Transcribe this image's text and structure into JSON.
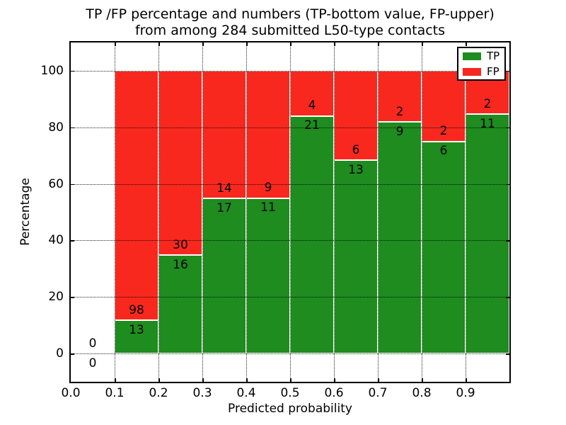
{
  "title": {
    "line1": "TP /FP percentage and numbers (TP-bottom value, FP-upper)",
    "line2": "from among 284 submitted L50-type contacts"
  },
  "axes": {
    "xlabel": "Predicted probability",
    "ylabel": "Percentage",
    "xtick_labels": [
      "0.0",
      "0.1",
      "0.2",
      "0.3",
      "0.4",
      "0.5",
      "0.6",
      "0.7",
      "0.8",
      "0.9"
    ],
    "ytick_labels": [
      "0",
      "20",
      "40",
      "60",
      "80",
      "100"
    ]
  },
  "legend": {
    "items": [
      {
        "label": "TP",
        "color": "#1e8c1e"
      },
      {
        "label": "FP",
        "color": "#f8281e"
      }
    ]
  },
  "chart_data": {
    "type": "bar",
    "stacked": true,
    "title": "TP /FP percentage and numbers (TP-bottom value, FP-upper) from among 284 submitted L50-type contacts",
    "xlabel": "Predicted probability",
    "ylabel": "Percentage",
    "xlim": [
      0.0,
      1.0
    ],
    "ylim": [
      -10,
      110
    ],
    "grid": true,
    "legend_position": "upper right",
    "total_contacts": 284,
    "bin_width": 0.1,
    "series_note": "Green bottom segment = TP percentage of bin, red upper segment = FP percentage; segments sum to 100%. Numeric labels are raw TP/FP counts.",
    "bins": [
      {
        "range": [
          0.0,
          0.1
        ],
        "tp": 0,
        "fp": 0,
        "tp_pct": 0
      },
      {
        "range": [
          0.1,
          0.2
        ],
        "tp": 13,
        "fp": 98,
        "tp_pct": 11.71
      },
      {
        "range": [
          0.2,
          0.3
        ],
        "tp": 16,
        "fp": 30,
        "tp_pct": 34.78
      },
      {
        "range": [
          0.3,
          0.4
        ],
        "tp": 17,
        "fp": 14,
        "tp_pct": 54.84
      },
      {
        "range": [
          0.4,
          0.5
        ],
        "tp": 11,
        "fp": 9,
        "tp_pct": 55.0
      },
      {
        "range": [
          0.5,
          0.6
        ],
        "tp": 21,
        "fp": 4,
        "tp_pct": 84.0
      },
      {
        "range": [
          0.6,
          0.7
        ],
        "tp": 13,
        "fp": 6,
        "tp_pct": 68.42
      },
      {
        "range": [
          0.7,
          0.8
        ],
        "tp": 9,
        "fp": 2,
        "tp_pct": 81.82
      },
      {
        "range": [
          0.8,
          0.9
        ],
        "tp": 6,
        "fp": 2,
        "tp_pct": 75.0
      },
      {
        "range": [
          0.9,
          1.0
        ],
        "tp": 11,
        "fp": 2,
        "tp_pct": 84.62
      }
    ],
    "colors": {
      "tp": "#1e8c1e",
      "fp": "#f8281e",
      "bar_edge": "#ffffff",
      "grid": "#000000"
    }
  }
}
